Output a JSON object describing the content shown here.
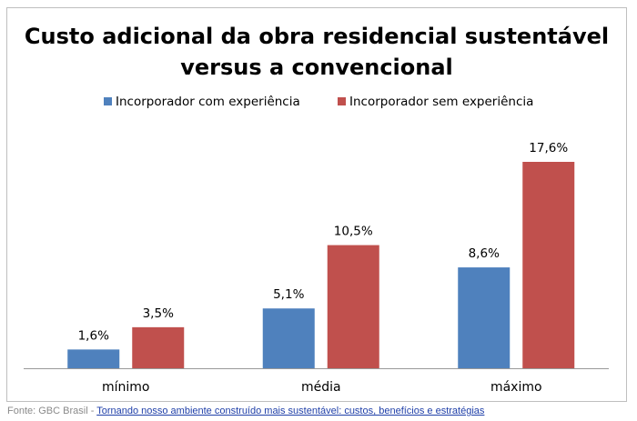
{
  "chart_data": {
    "type": "bar",
    "title_lines": [
      "Custo adicional da obra residencial sustentável",
      "versus a convencional"
    ],
    "categories": [
      "mínimo",
      "média",
      "máximo"
    ],
    "series": [
      {
        "name": "Incorporador com experiência",
        "color": "#4f81bd",
        "values": [
          1.6,
          5.1,
          8.6
        ],
        "labels": [
          "1,6%",
          "5,1%",
          "8,6%"
        ]
      },
      {
        "name": "Incorporador sem experiência",
        "color": "#c0504d",
        "values": [
          3.5,
          10.5,
          17.6
        ],
        "labels": [
          "3,5%",
          "10,5%",
          "17,6%"
        ]
      }
    ],
    "ylim": [
      0,
      20
    ],
    "y_axis_visible": false,
    "grid": false,
    "legend_position": "top"
  },
  "source": {
    "prefix": "Fonte: GBC Brasil - ",
    "link": "Tornando nosso ambiente construído mais sustentável: custos, benefícios e estratégias"
  }
}
